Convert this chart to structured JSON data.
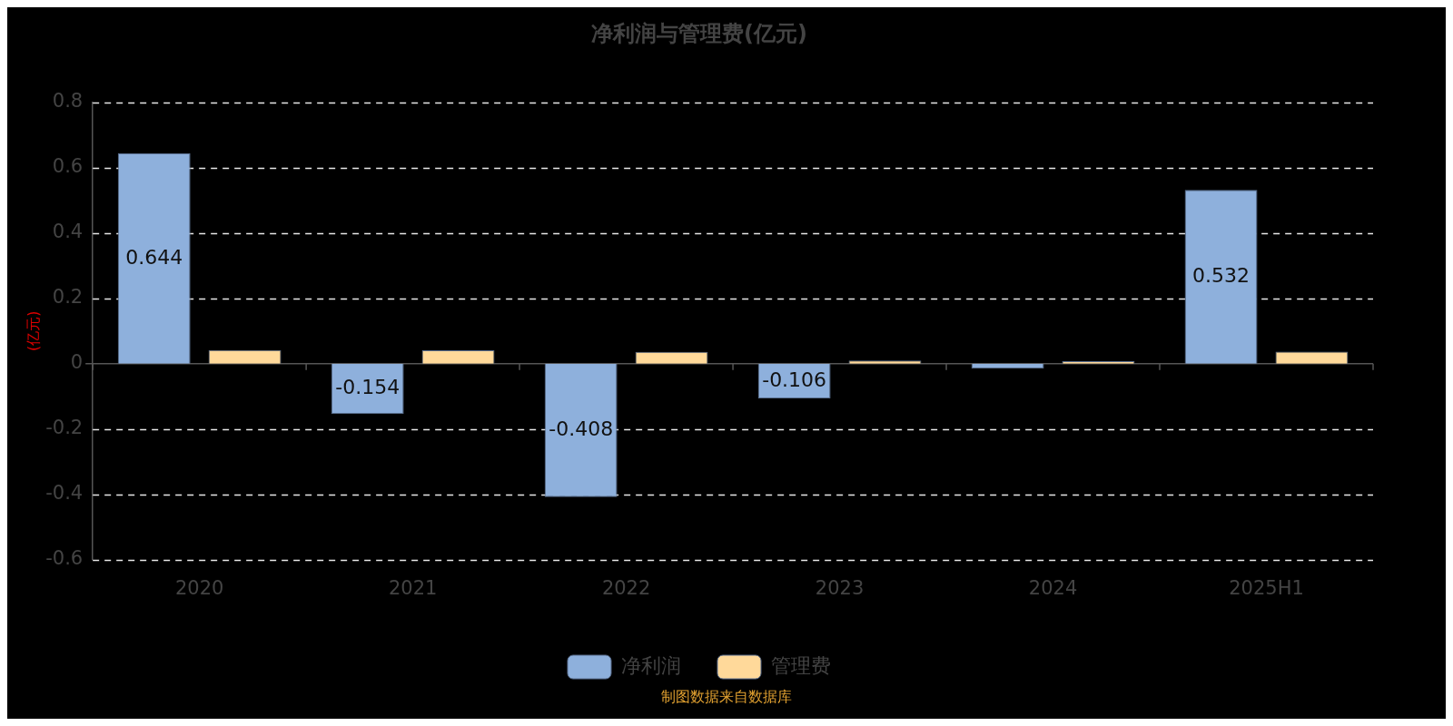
{
  "chart_data": {
    "type": "bar",
    "title": "净利润与管理费(亿元)",
    "ylabel": "(亿元)",
    "categories": [
      "2020",
      "2021",
      "2022",
      "2023",
      "2024",
      "2025H1"
    ],
    "series": [
      {
        "name": "净利润",
        "color": "#8eb0dc",
        "values": [
          0.644,
          -0.154,
          -0.408,
          -0.106,
          -0.015,
          0.532
        ],
        "value_labels": [
          "0.644",
          "-0.154",
          "-0.408",
          "-0.106",
          null,
          "0.532"
        ]
      },
      {
        "name": "管理费",
        "color": "#ffd99a",
        "values": [
          0.042,
          0.041,
          0.036,
          0.01,
          0.008,
          0.037
        ]
      }
    ],
    "ylim": [
      -0.6,
      0.8
    ],
    "yticks": [
      -0.6,
      -0.4,
      -0.2,
      0,
      0.2,
      0.4,
      0.6,
      0.8
    ],
    "grid": "y",
    "legend": "bottom",
    "annotations": [
      "制图数据来自数据库"
    ]
  }
}
